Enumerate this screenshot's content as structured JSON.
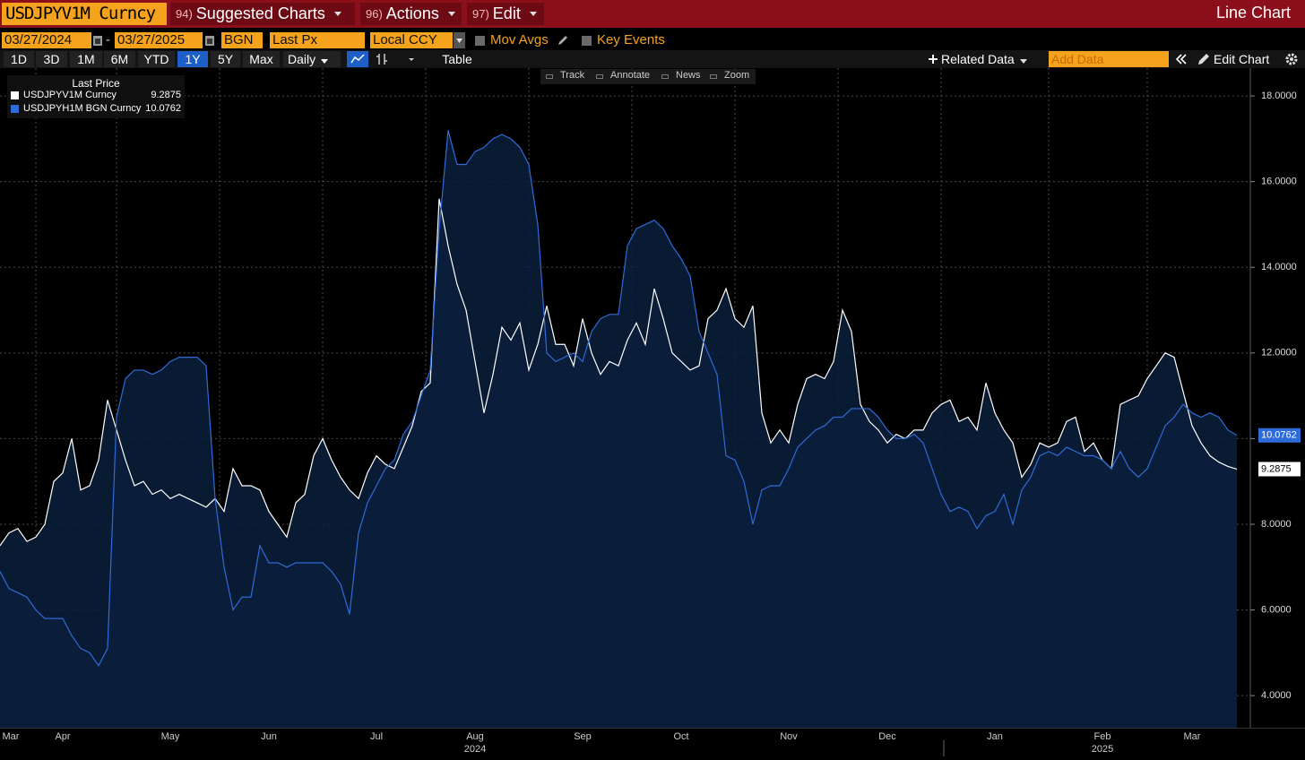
{
  "toolbar": {
    "security": "USDJPYV1M Curncy",
    "menus": [
      {
        "key": "94)",
        "label": "Suggested Charts"
      },
      {
        "key": "96)",
        "label": "Actions"
      },
      {
        "key": "97)",
        "label": "Edit"
      }
    ],
    "view": "Line Chart"
  },
  "params": {
    "start": "03/27/2024",
    "range_separator": "-",
    "end": "03/27/2025",
    "source": "BGN",
    "field": "Last Px",
    "currency": "Local CCY",
    "options": [
      "Mov Avgs",
      "Key Events"
    ]
  },
  "periods": [
    "1D",
    "3D",
    "1M",
    "6M",
    "YTD",
    "1Y",
    "5Y",
    "Max"
  ],
  "selected_period": "1Y",
  "frequency": "Daily",
  "table_button": "Table",
  "related": "Related Data",
  "add_data": "Add Data",
  "edit_chart": "Edit Chart",
  "chart_tools": [
    "Track",
    "Annotate",
    "News",
    "Zoom"
  ],
  "legend_title": "Last Price",
  "chart_data": {
    "type": "line",
    "categories": [
      null,
      "Mar",
      null,
      null,
      null,
      null,
      null,
      "Apr",
      null,
      null,
      null,
      null,
      null,
      null,
      null,
      null,
      null,
      null,
      null,
      "May",
      null,
      null,
      null,
      null,
      null,
      null,
      null,
      null,
      null,
      null,
      "Jun",
      null,
      null,
      null,
      null,
      null,
      null,
      null,
      null,
      null,
      null,
      null,
      "Jul",
      null,
      null,
      null,
      null,
      null,
      null,
      null,
      null,
      null,
      null,
      "Aug",
      null,
      null,
      null,
      null,
      null,
      null,
      null,
      null,
      null,
      null,
      null,
      "Sep",
      null,
      null,
      null,
      null,
      null,
      null,
      null,
      null,
      null,
      null,
      "Oct",
      null,
      null,
      null,
      null,
      null,
      null,
      null,
      null,
      null,
      null,
      null,
      "Nov",
      null,
      null,
      null,
      null,
      null,
      null,
      null,
      null,
      null,
      null,
      "Dec",
      null,
      null,
      null,
      null,
      null,
      null,
      null,
      null,
      null,
      null,
      null,
      "Jan",
      null,
      null,
      null,
      null,
      null,
      null,
      null,
      null,
      null,
      null,
      null,
      "Feb",
      null,
      null,
      null,
      null,
      null,
      null,
      null,
      null,
      null,
      "Mar",
      null,
      null,
      null,
      null,
      null
    ],
    "year_labels": [
      null,
      null,
      null,
      null,
      null,
      null,
      null,
      null,
      null,
      null,
      null,
      null,
      null,
      null,
      null,
      null,
      null,
      null,
      null,
      null,
      null,
      null,
      null,
      null,
      null,
      null,
      null,
      null,
      null,
      null,
      null,
      null,
      null,
      null,
      null,
      null,
      null,
      null,
      null,
      null,
      null,
      null,
      null,
      null,
      null,
      null,
      null,
      null,
      null,
      null,
      null,
      null,
      null,
      "2024",
      null,
      null,
      null,
      null,
      null,
      null,
      null,
      null,
      null,
      null,
      null,
      null,
      null,
      null,
      null,
      null,
      null,
      null,
      null,
      null,
      null,
      null,
      null,
      null,
      null,
      null,
      null,
      null,
      null,
      null,
      null,
      null,
      null,
      null,
      null,
      null,
      null,
      null,
      null,
      null,
      null,
      null,
      null,
      null,
      null,
      null,
      null,
      null,
      null,
      null,
      null,
      null,
      null,
      null,
      null,
      null,
      null,
      null,
      null,
      null,
      null,
      null,
      null,
      null,
      null,
      null,
      null,
      null,
      null,
      "2025",
      null,
      null,
      null,
      null,
      null,
      null,
      null,
      null,
      null,
      null,
      null,
      null,
      null,
      null,
      null
    ],
    "series": [
      {
        "name": "USDJPYV1M Curncy",
        "color": "#ffffff",
        "values": [
          7.5,
          7.8,
          7.9,
          7.6,
          7.7,
          8.0,
          9.0,
          9.2,
          10.0,
          8.8,
          8.9,
          9.5,
          10.9,
          10.2,
          9.5,
          8.9,
          9.0,
          8.7,
          8.8,
          8.6,
          8.7,
          8.6,
          8.5,
          8.4,
          8.6,
          8.3,
          9.3,
          8.9,
          8.9,
          8.8,
          8.3,
          8.0,
          7.7,
          8.5,
          8.7,
          9.6,
          10.0,
          9.5,
          9.1,
          8.8,
          8.6,
          9.2,
          9.6,
          9.4,
          9.3,
          9.8,
          10.3,
          11.1,
          11.3,
          15.6,
          14.5,
          13.6,
          13.0,
          11.8,
          10.6,
          11.5,
          12.6,
          12.3,
          12.7,
          11.6,
          12.2,
          13.1,
          12.2,
          12.2,
          11.7,
          12.8,
          12.0,
          11.5,
          11.8,
          11.7,
          12.3,
          12.7,
          12.2,
          13.5,
          12.8,
          12.0,
          11.8,
          11.6,
          11.7,
          12.8,
          13.0,
          13.5,
          12.8,
          12.6,
          13.1,
          10.6,
          9.9,
          10.2,
          9.9,
          10.8,
          11.4,
          11.5,
          11.4,
          11.8,
          13.0,
          12.5,
          10.8,
          10.4,
          10.2,
          9.9,
          10.1,
          10.0,
          10.2,
          10.2,
          10.6,
          10.8,
          10.9,
          10.4,
          10.5,
          10.2,
          11.3,
          10.6,
          10.2,
          9.9,
          9.1,
          9.4,
          9.9,
          9.8,
          9.9,
          10.4,
          10.5,
          9.7,
          9.9,
          9.5,
          9.3,
          10.8,
          10.9,
          11.0,
          11.4,
          11.7,
          12.0,
          11.9,
          11.1,
          10.3,
          9.9,
          9.6,
          9.45,
          9.35,
          9.2875
        ]
      },
      {
        "name": "USDJPYH1M BGN Curncy",
        "color": "#2f6bd8",
        "values": [
          6.9,
          6.5,
          6.4,
          6.3,
          6.0,
          5.8,
          5.8,
          5.8,
          5.4,
          5.1,
          5.0,
          4.7,
          5.1,
          10.5,
          11.4,
          11.6,
          11.6,
          11.5,
          11.6,
          11.8,
          11.9,
          11.9,
          11.9,
          11.7,
          8.6,
          7.0,
          6.0,
          6.3,
          6.3,
          7.5,
          7.1,
          7.1,
          7.0,
          7.1,
          7.1,
          7.1,
          7.1,
          6.9,
          6.6,
          5.9,
          7.8,
          8.5,
          8.9,
          9.3,
          9.5,
          10.1,
          10.4,
          11.0,
          11.6,
          14.9,
          17.2,
          16.4,
          16.4,
          16.7,
          16.8,
          17.0,
          17.1,
          17.0,
          16.8,
          16.4,
          15.0,
          12.0,
          11.8,
          11.9,
          12.0,
          11.8,
          12.5,
          12.8,
          12.9,
          12.9,
          14.5,
          14.9,
          15.0,
          15.1,
          14.9,
          14.5,
          14.2,
          13.8,
          12.5,
          12.0,
          11.5,
          9.6,
          9.5,
          9.0,
          8.0,
          8.8,
          8.9,
          8.9,
          9.3,
          9.8,
          10.0,
          10.2,
          10.3,
          10.5,
          10.5,
          10.7,
          10.7,
          10.7,
          10.5,
          10.2,
          10.0,
          10.0,
          10.1,
          9.9,
          9.3,
          8.7,
          8.3,
          8.4,
          8.3,
          7.9,
          8.2,
          8.3,
          8.7,
          8.0,
          8.8,
          9.1,
          9.6,
          9.7,
          9.6,
          9.8,
          9.7,
          9.6,
          9.6,
          9.5,
          9.3,
          9.7,
          9.3,
          9.1,
          9.3,
          9.8,
          10.3,
          10.5,
          10.8,
          10.6,
          10.5,
          10.6,
          10.5,
          10.2,
          10.0762
        ]
      }
    ],
    "ylim": [
      3.25,
      18.65
    ],
    "yticks": [
      {
        "value": 4,
        "label": "4.0000"
      },
      {
        "value": 6,
        "label": "6.0000"
      },
      {
        "value": 8,
        "label": "8.0000"
      },
      {
        "value": 10,
        "label": "10.0000"
      },
      {
        "value": 12,
        "label": "12.0000"
      },
      {
        "value": 14,
        "label": "14.0000"
      },
      {
        "value": 16,
        "label": "16.0000"
      },
      {
        "value": 18,
        "label": "18.0000"
      }
    ],
    "grid": true,
    "area_fill": "#0b1e3c"
  }
}
